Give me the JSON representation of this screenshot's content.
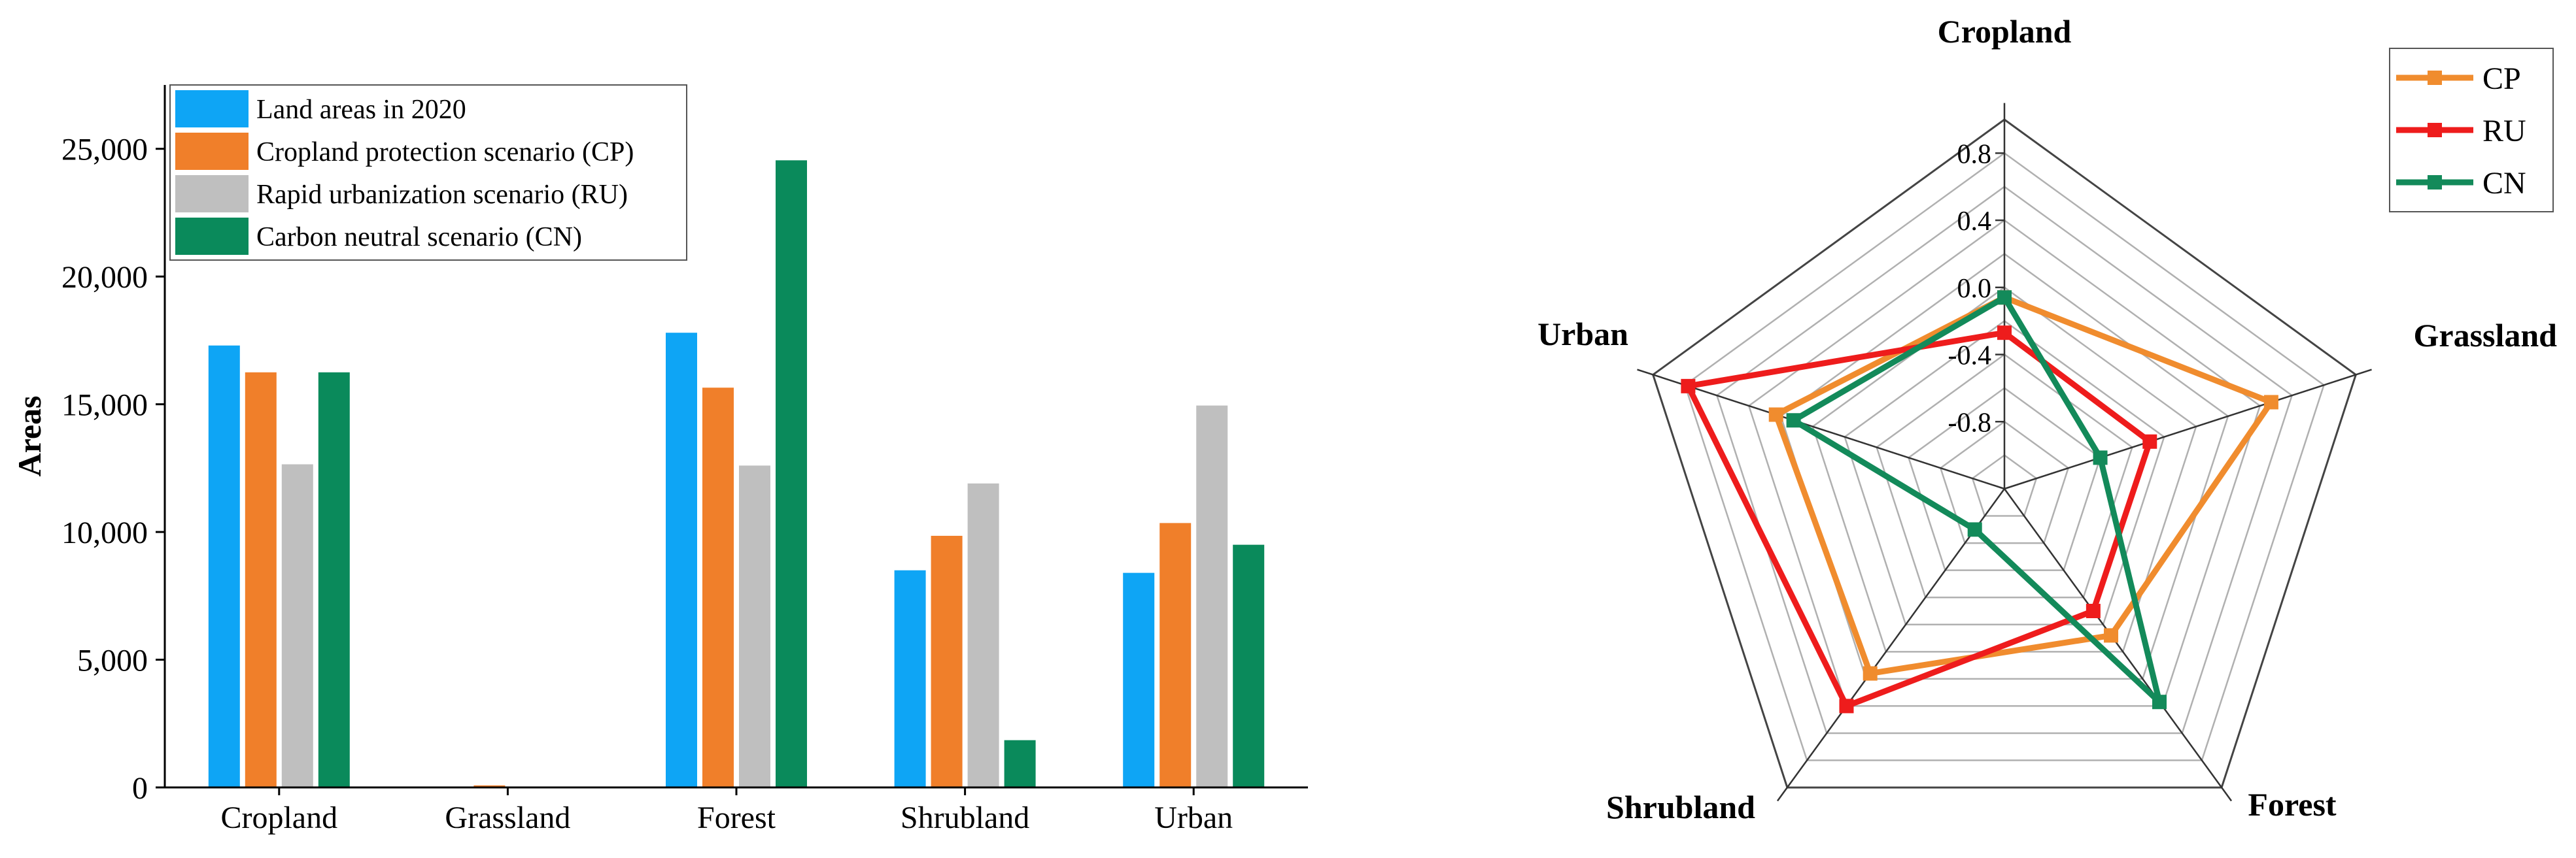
{
  "colors": {
    "land2020": "#0EA5F5",
    "cp": "#F07F2A",
    "ru": "#BFBFBF",
    "cn": "#0A8A5B",
    "radar_cp": "#F08C2E",
    "radar_ru": "#EE1C1C",
    "radar_cn": "#138A5A",
    "axis": "#000000",
    "grid": "#B0B0B0"
  },
  "chart_data": [
    {
      "type": "bar",
      "categories": [
        "Cropland",
        "Grassland",
        "Forest",
        "Shrubland",
        "Urban"
      ],
      "ylabel": "Areas",
      "xlabel": "",
      "ylim": [
        0,
        27500
      ],
      "yticks": [
        0,
        5000,
        10000,
        15000,
        20000,
        25000
      ],
      "ytick_labels": [
        "0",
        "5,000",
        "10,000",
        "15,000",
        "20,000",
        "25,000"
      ],
      "legend_position": "top-left",
      "series": [
        {
          "name": "Land areas in 2020",
          "key": "land2020",
          "values": [
            17300,
            0,
            17800,
            8500,
            8400
          ]
        },
        {
          "name": "Cropland protection scenario (CP)",
          "key": "cp",
          "values": [
            16250,
            80,
            15650,
            9850,
            10350
          ]
        },
        {
          "name": "Rapid urbanization scenario (RU)",
          "key": "ru",
          "values": [
            12650,
            0,
            12600,
            11900,
            14950
          ]
        },
        {
          "name": "Carbon neutral scenario (CN)",
          "key": "cn",
          "values": [
            16250,
            0,
            24550,
            1850,
            9500
          ]
        }
      ]
    },
    {
      "type": "radar",
      "axes": [
        "Cropland",
        "Grassland",
        "Forest",
        "Shrubland",
        "Urban"
      ],
      "rlim": [
        -1.2,
        1.0
      ],
      "rings": [
        -1.0,
        -0.8,
        -0.6,
        -0.4,
        -0.2,
        0.0,
        0.2,
        0.4,
        0.6,
        0.8,
        1.0
      ],
      "tick_labels": [
        "-0.8",
        "-0.4",
        "0.0",
        "0.4",
        "0.8"
      ],
      "legend_position": "top-right",
      "series": [
        {
          "name": "CP",
          "key": "radar_cp",
          "values": [
            -0.06,
            0.47,
            -0.12,
            0.16,
            0.23
          ]
        },
        {
          "name": "RU",
          "key": "radar_ru",
          "values": [
            -0.27,
            -0.29,
            -0.3,
            0.4,
            0.78
          ]
        },
        {
          "name": "CN",
          "key": "radar_cn",
          "values": [
            -0.06,
            -0.6,
            0.37,
            -0.9,
            0.12
          ]
        }
      ]
    }
  ]
}
